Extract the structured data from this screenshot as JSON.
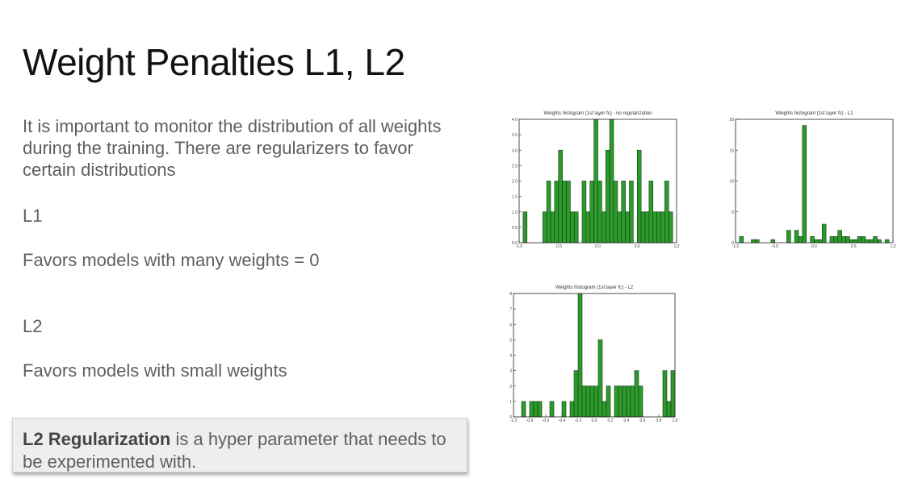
{
  "slide": {
    "title": "Weight Penalties L1, L2",
    "intro": "It is important to monitor the distribution of all weights during the training. There are regularizers to favor certain distributions",
    "l1_heading": "L1",
    "l1_description": "Favors models with many weights = 0",
    "l2_heading": "L2",
    "l2_description": "Favors models with small weights",
    "callout": {
      "bold": "L2 Regularization",
      "rest": " is a hyper parameter that needs to be experimented with."
    }
  },
  "colors": {
    "bar": "#2e9a2e",
    "bar_edge": "#0b3d0b"
  },
  "chart_data": [
    {
      "type": "bar",
      "title": "Weights histogram (1st layer fc) - no regularization",
      "xlim": [
        -1.0,
        1.0
      ],
      "ylim": [
        0,
        4.0
      ],
      "xticks": [
        "-1.0",
        "-0.5",
        "0.0",
        "0.5",
        "1.0"
      ],
      "yticks": [
        "0.0",
        "0.5",
        "1.0",
        "1.5",
        "2.0",
        "2.5",
        "3.0",
        "3.5",
        "4.0"
      ],
      "bin_width": 0.05,
      "bin_starts": [
        -0.95,
        -0.7,
        -0.65,
        -0.6,
        -0.55,
        -0.5,
        -0.45,
        -0.4,
        -0.35,
        -0.3,
        -0.2,
        -0.15,
        -0.1,
        -0.05,
        0.0,
        0.05,
        0.1,
        0.15,
        0.2,
        0.25,
        0.3,
        0.35,
        0.4,
        0.5,
        0.55,
        0.6,
        0.65,
        0.7,
        0.75,
        0.8,
        0.85,
        0.9
      ],
      "values": [
        1,
        1,
        2,
        1,
        2,
        3,
        2,
        2,
        1,
        1,
        2,
        1,
        2,
        4,
        2,
        1,
        3,
        4,
        2,
        1,
        2,
        1,
        2,
        3,
        1,
        1,
        2,
        1,
        1,
        1,
        2,
        1
      ]
    },
    {
      "type": "bar",
      "title": "Weights histogram (1st layer fc) - L1",
      "xlim": [
        -1.0,
        1.0
      ],
      "ylim": [
        0,
        20
      ],
      "xticks": [
        "-1.0",
        "-0.5",
        "0.0",
        "0.5",
        "1.0"
      ],
      "yticks": [
        "0",
        "5",
        "10",
        "15",
        "20"
      ],
      "bin_width": 0.05,
      "bin_starts": [
        -0.95,
        -0.8,
        -0.75,
        -0.55,
        -0.35,
        -0.25,
        -0.2,
        -0.15,
        -0.05,
        0.0,
        0.05,
        0.1,
        0.2,
        0.25,
        0.3,
        0.35,
        0.4,
        0.45,
        0.5,
        0.55,
        0.6,
        0.65,
        0.7,
        0.75,
        0.8,
        0.9
      ],
      "values": [
        1,
        0.5,
        0.5,
        0.5,
        2,
        2,
        1,
        19,
        1,
        0.5,
        0.5,
        3,
        1,
        1,
        2,
        1,
        1,
        0.5,
        0.5,
        1,
        1,
        0.5,
        0.5,
        1,
        0.5,
        0.5
      ]
    },
    {
      "type": "bar",
      "title": "Weights histogram (1st layer fc) - L2",
      "xlim": [
        -1.0,
        1.0
      ],
      "ylim": [
        0,
        8
      ],
      "xticks": [
        "-1.0",
        "-0.8",
        "-0.6",
        "-0.4",
        "-0.2",
        "0.0",
        "0.2",
        "0.4",
        "0.6",
        "0.8",
        "1.0"
      ],
      "yticks": [
        "0",
        "1",
        "2",
        "3",
        "4",
        "5",
        "6",
        "7",
        "8"
      ],
      "bin_width": 0.05,
      "bin_starts": [
        -0.9,
        -0.8,
        -0.75,
        -0.7,
        -0.55,
        -0.4,
        -0.3,
        -0.25,
        -0.2,
        -0.15,
        -0.1,
        -0.05,
        0.0,
        0.05,
        0.1,
        0.15,
        0.25,
        0.3,
        0.35,
        0.4,
        0.45,
        0.5,
        0.55,
        0.85,
        0.9,
        0.95
      ],
      "values": [
        1,
        1,
        1,
        1,
        1,
        1,
        1,
        3,
        8,
        2,
        2,
        2,
        2,
        5,
        1,
        2,
        2,
        2,
        2,
        2,
        2,
        3,
        2,
        3,
        1,
        3
      ]
    }
  ]
}
